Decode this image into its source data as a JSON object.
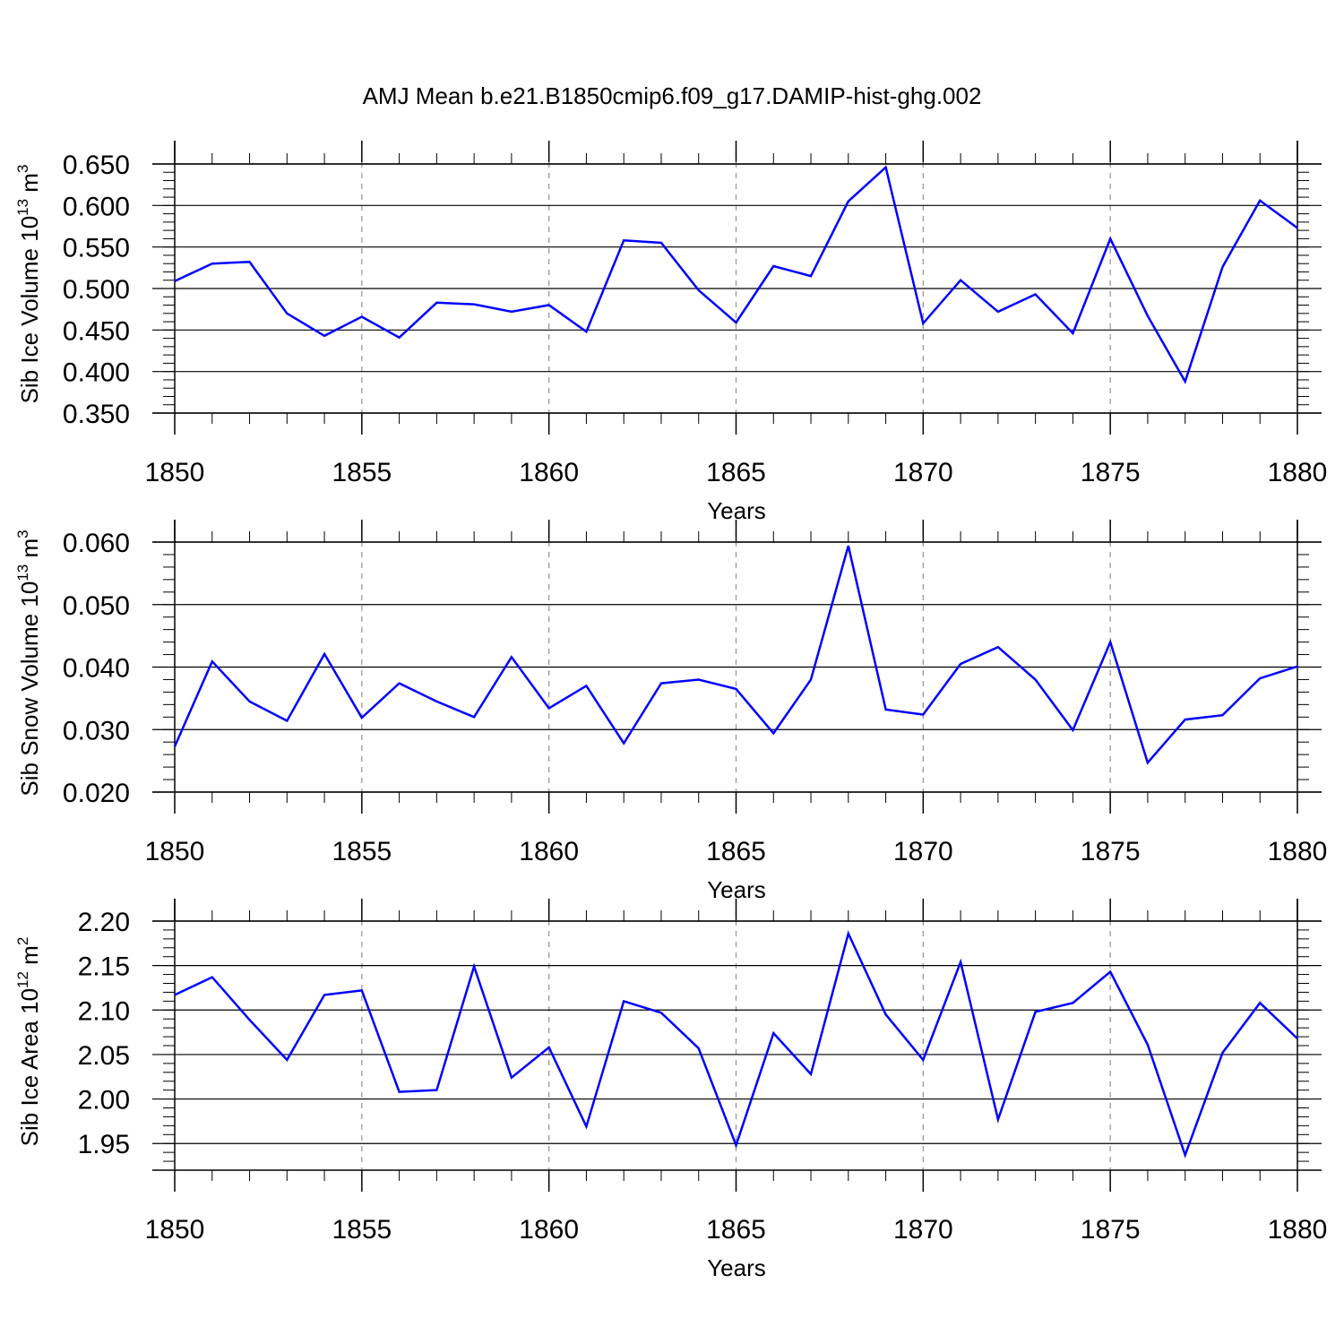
{
  "title": "AMJ Mean b.e21.B1850cmip6.f09_g17.DAMIP-hist-ghg.002",
  "colors": {
    "line": "#0000ff",
    "axis": "#000000",
    "grid": "#999999"
  },
  "chart_data": [
    {
      "type": "line",
      "xlabel": "Years",
      "ylabel": "Sib Ice Volume 10",
      "ylabel_exp": "13",
      "ylabel_unit": " m",
      "ylabel_unit_exp": "3",
      "xlim": [
        1850,
        1880
      ],
      "ylim": [
        0.35,
        0.65
      ],
      "yticks": [
        0.35,
        0.4,
        0.45,
        0.5,
        0.55,
        0.6,
        0.65
      ],
      "yticklabels": [
        "0.350",
        "0.400",
        "0.450",
        "0.500",
        "0.550",
        "0.600",
        "0.650"
      ],
      "xticks": [
        1850,
        1855,
        1860,
        1865,
        1870,
        1875,
        1880
      ],
      "xticklabels": [
        "1850",
        "1855",
        "1860",
        "1865",
        "1870",
        "1875",
        "1880"
      ],
      "x": [
        1850,
        1851,
        1852,
        1853,
        1854,
        1855,
        1856,
        1857,
        1858,
        1859,
        1860,
        1861,
        1862,
        1863,
        1864,
        1865,
        1866,
        1867,
        1868,
        1869,
        1870,
        1871,
        1872,
        1873,
        1874,
        1875,
        1876,
        1877,
        1878,
        1879,
        1880
      ],
      "values": [
        0.509,
        0.53,
        0.532,
        0.47,
        0.443,
        0.466,
        0.441,
        0.483,
        0.481,
        0.472,
        0.48,
        0.448,
        0.558,
        0.555,
        0.498,
        0.459,
        0.527,
        0.515,
        0.605,
        0.646,
        0.458,
        0.51,
        0.472,
        0.493,
        0.446,
        0.56,
        0.467,
        0.388,
        0.526,
        0.606,
        0.573
      ]
    },
    {
      "type": "line",
      "xlabel": "Years",
      "ylabel": "Sib Snow Volume 10",
      "ylabel_exp": "13",
      "ylabel_unit": " m",
      "ylabel_unit_exp": "3",
      "xlim": [
        1850,
        1880
      ],
      "ylim": [
        0.02,
        0.06
      ],
      "yticks": [
        0.02,
        0.03,
        0.04,
        0.05,
        0.06
      ],
      "yticklabels": [
        "0.020",
        "0.030",
        "0.040",
        "0.050",
        "0.060"
      ],
      "xticks": [
        1850,
        1855,
        1860,
        1865,
        1870,
        1875,
        1880
      ],
      "xticklabels": [
        "1850",
        "1855",
        "1860",
        "1865",
        "1870",
        "1875",
        "1880"
      ],
      "x": [
        1850,
        1851,
        1852,
        1853,
        1854,
        1855,
        1856,
        1857,
        1858,
        1859,
        1860,
        1861,
        1862,
        1863,
        1864,
        1865,
        1866,
        1867,
        1868,
        1869,
        1870,
        1871,
        1872,
        1873,
        1874,
        1875,
        1876,
        1877,
        1878,
        1879,
        1880
      ],
      "values": [
        0.0273,
        0.0409,
        0.0345,
        0.0314,
        0.0421,
        0.0319,
        0.0374,
        0.0345,
        0.032,
        0.0416,
        0.0334,
        0.037,
        0.0278,
        0.0374,
        0.038,
        0.0365,
        0.0294,
        0.038,
        0.0594,
        0.0332,
        0.0324,
        0.0405,
        0.0432,
        0.038,
        0.0299,
        0.044,
        0.0247,
        0.0316,
        0.0323,
        0.0382,
        0.0401
      ]
    },
    {
      "type": "line",
      "xlabel": "Years",
      "ylabel": "Sib Ice Area 10",
      "ylabel_exp": "12",
      "ylabel_unit": " m",
      "ylabel_unit_exp": "2",
      "xlim": [
        1850,
        1880
      ],
      "ylim": [
        1.92,
        2.2
      ],
      "yticks": [
        1.95,
        2.0,
        2.05,
        2.1,
        2.15,
        2.2
      ],
      "yticklabels": [
        "1.95",
        "2.00",
        "2.05",
        "2.10",
        "2.15",
        "2.20"
      ],
      "xticks": [
        1850,
        1855,
        1860,
        1865,
        1870,
        1875,
        1880
      ],
      "xticklabels": [
        "1850",
        "1855",
        "1860",
        "1865",
        "1870",
        "1875",
        "1880"
      ],
      "x": [
        1850,
        1851,
        1852,
        1853,
        1854,
        1855,
        1856,
        1857,
        1858,
        1859,
        1860,
        1861,
        1862,
        1863,
        1864,
        1865,
        1866,
        1867,
        1868,
        1869,
        1870,
        1871,
        1872,
        1873,
        1874,
        1875,
        1876,
        1877,
        1878,
        1879,
        1880
      ],
      "values": [
        2.117,
        2.137,
        2.089,
        2.044,
        2.117,
        2.122,
        2.008,
        2.01,
        2.149,
        2.024,
        2.058,
        1.969,
        2.11,
        2.097,
        2.057,
        1.948,
        2.074,
        2.028,
        2.186,
        2.095,
        2.044,
        2.154,
        1.977,
        2.098,
        2.108,
        2.143,
        2.061,
        1.937,
        2.052,
        2.108,
        2.068
      ]
    }
  ]
}
